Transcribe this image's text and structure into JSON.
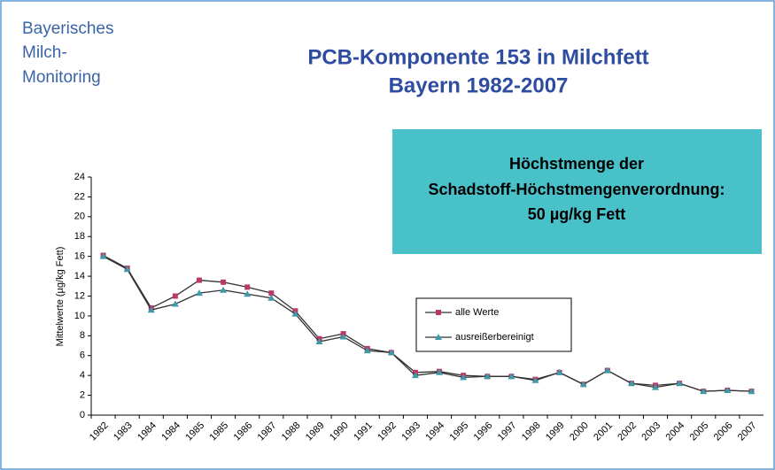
{
  "header_lines": [
    "Bayerisches",
    "Milch-",
    "Monitoring"
  ],
  "chart_data": {
    "type": "line",
    "title_lines": [
      "PCB-Komponente 153 in Milchfett",
      "Bayern 1982-2007"
    ],
    "annotation_lines": [
      "Höchstmenge der",
      "Schadstoff-Höchstmengenverordnung:",
      "50 µg/kg Fett"
    ],
    "ylabel": "Mittelwerte (µg/kg Fett)",
    "categories": [
      "1982",
      "1983",
      "1984",
      "1984",
      "1985",
      "1985",
      "1986",
      "1987",
      "1988",
      "1989",
      "1990",
      "1991",
      "1992",
      "1993",
      "1994",
      "1995",
      "1996",
      "1997",
      "1998",
      "1999",
      "2000",
      "2001",
      "2002",
      "2003",
      "2004",
      "2005",
      "2006",
      "2007"
    ],
    "series": [
      {
        "name": "alle Werte",
        "color": "#b8386a",
        "marker": "square",
        "values": [
          16.1,
          14.8,
          10.8,
          12.0,
          13.6,
          13.4,
          12.9,
          12.3,
          10.5,
          7.7,
          8.2,
          6.7,
          6.3,
          4.3,
          4.4,
          4.0,
          3.9,
          3.9,
          3.6,
          4.3,
          3.1,
          4.5,
          3.2,
          3.0,
          3.2,
          2.4,
          2.5,
          2.4
        ]
      },
      {
        "name": "ausreißerbereinigt",
        "color": "#3f9aa8",
        "marker": "triangle",
        "values": [
          16.0,
          14.7,
          10.6,
          11.2,
          12.3,
          12.6,
          12.2,
          11.8,
          10.2,
          7.4,
          7.9,
          6.5,
          6.3,
          4.0,
          4.3,
          3.8,
          3.9,
          3.9,
          3.5,
          4.3,
          3.1,
          4.5,
          3.2,
          2.8,
          3.2,
          2.4,
          2.5,
          2.4
        ]
      }
    ],
    "ylim": [
      0,
      24
    ],
    "yticks": [
      0,
      2,
      4,
      6,
      8,
      10,
      12,
      14,
      16,
      18,
      20,
      22,
      24
    ],
    "grid": false,
    "legend": "center-right"
  }
}
